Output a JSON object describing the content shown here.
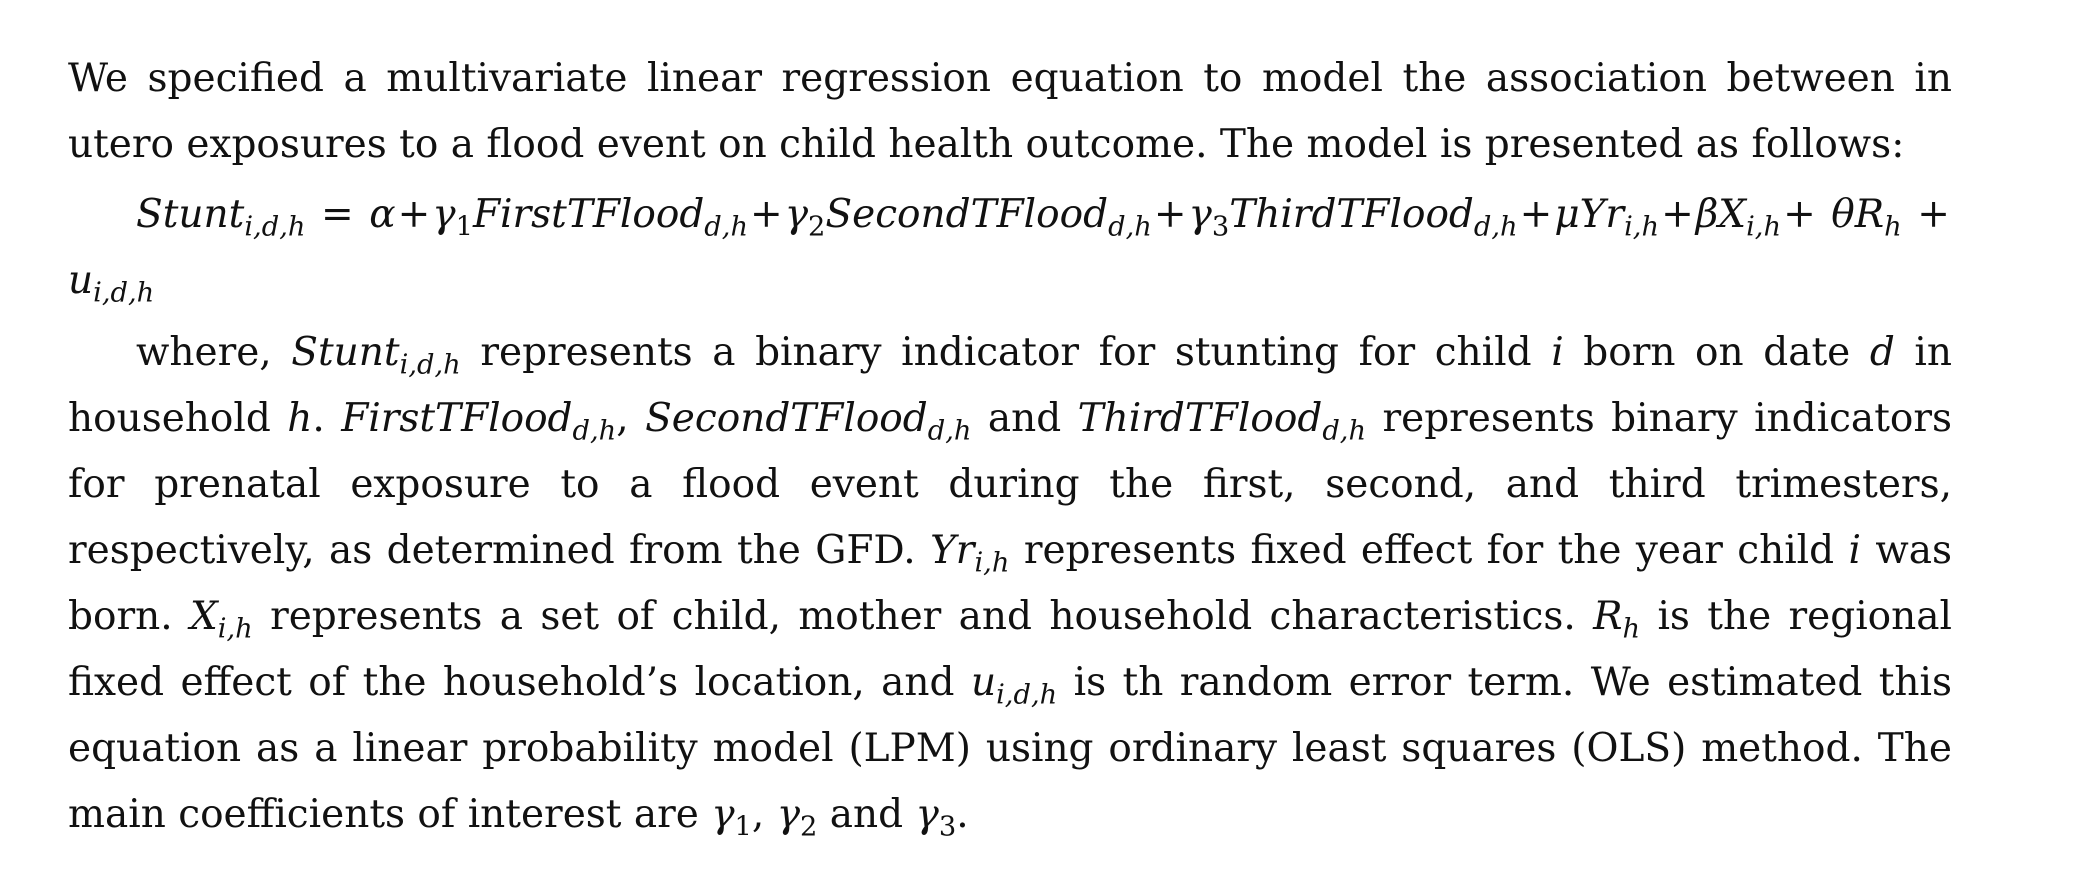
{
  "intro": "We specified a multivariate linear regression equation to model the association between in utero exposures to a flood event on child health outcome. The model is presented as follows:",
  "equation": {
    "lhs": "Stunt",
    "lhs_sub": "i,d,h",
    "eq": "=",
    "alpha": "α",
    "plus": "+",
    "gamma1": "γ",
    "gamma1_sub": "1",
    "first": "FirstTFlood",
    "first_sub": "d,h",
    "gamma2": "γ",
    "gamma2_sub": "2",
    "second": "SecondTFlood",
    "second_sub": "d,h",
    "gamma3": "γ",
    "gamma3_sub": "3",
    "third": "ThirdTFlood",
    "third_sub": "d,h",
    "mu": "μ",
    "yr": "Yr",
    "yr_sub": "i,h",
    "beta": "β",
    "x": "X",
    "x_sub": "i,h",
    "theta": "θ",
    "r": "R",
    "r_sub": "h",
    "u": "u",
    "u_sub": "i,d,h"
  },
  "where": {
    "t1": "where, ",
    "stunt": "Stunt",
    "stunt_sub": "i,d,h",
    "t2": " represents a binary indicator for stunting for child ",
    "i1": "i",
    "t3": " born on date ",
    "d1": "d",
    "t4": " in household ",
    "h1": "h",
    "t5": ". ",
    "first": "FirstTFlood",
    "first_sub": "d,h",
    "t6": ", ",
    "second": "SecondTFlood",
    "second_sub": "d,h",
    "t7": " and ",
    "third": "ThirdTFlood",
    "third_sub": "d,h",
    "t8": " represents binary indicators for prenatal exposure to a flood event during the first, second, and third trimesters, respectively, as determined from the GFD. ",
    "yr": "Yr",
    "yr_sub": "i,h",
    "t9": " represents fixed effect for the year child ",
    "i2": "i",
    "t10": " was born. ",
    "x": "X",
    "x_sub": "i,h",
    "t11": " represents a set of child, mother and household characteristics. ",
    "r": "R",
    "r_sub": "h",
    "t12": " is the regional fixed effect of the household’s location, and ",
    "u": "u",
    "u_sub": "i,d,h",
    "t13": " is th random error term. We estimated this equation as a linear probability model (LPM) using ordinary least squares (OLS) method. The main coefficients of interest are ",
    "g1": "γ",
    "g1_sub": "1",
    "t14": ", ",
    "g2": "γ",
    "g2_sub": "2",
    "t15": " and ",
    "g3": "γ",
    "g3_sub": "3",
    "t16": "."
  }
}
